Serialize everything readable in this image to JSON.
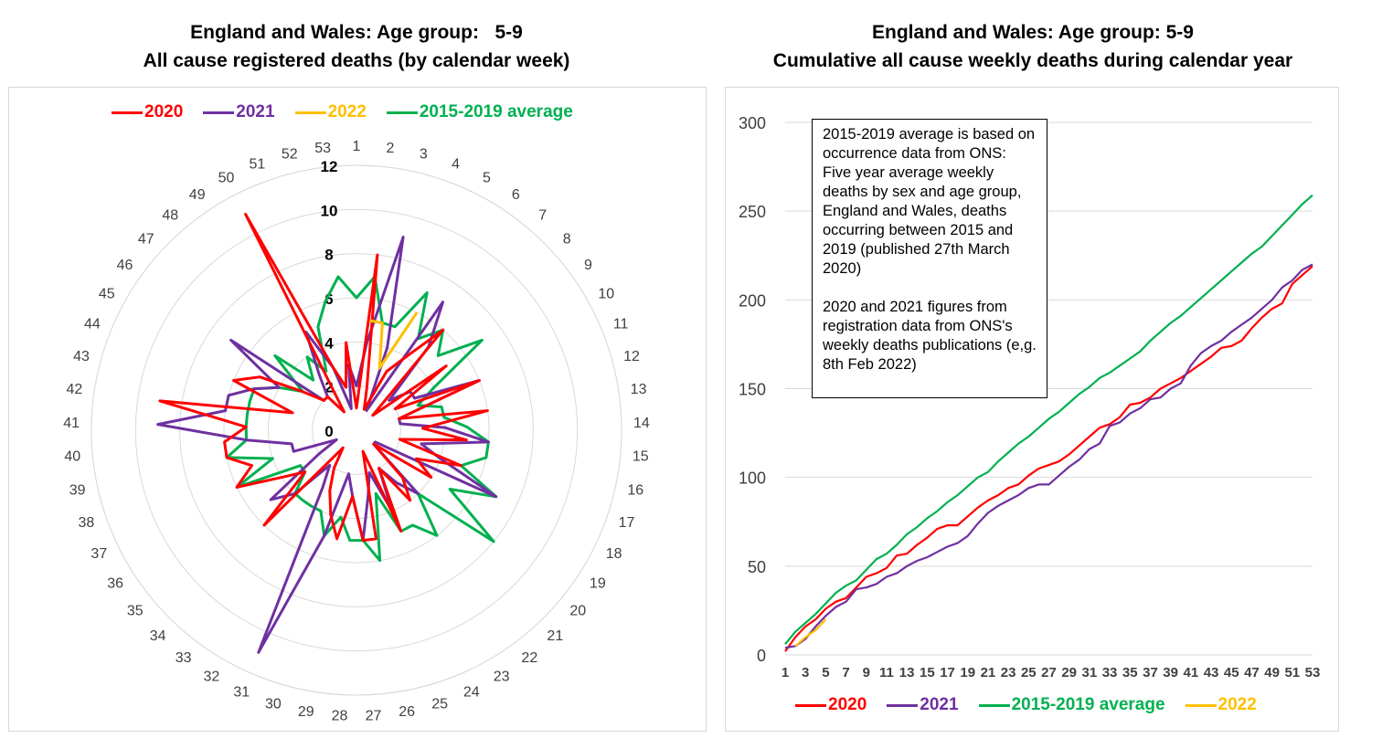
{
  "charts": {
    "radar_title": [
      "England and Wales: Age group:   5-9",
      "All cause registered deaths (by calendar week)"
    ],
    "line_title": [
      "England and Wales: Age group: 5-9",
      "Cumulative all cause weekly deaths during calendar year"
    ],
    "note": [
      "2015-2019 average is based on occurrence data from ONS: Five year average weekly deaths by sex and age group, England and Wales, deaths occurring between 2015 and 2019 (published 27th March 2020)",
      "2020 and 2021 figures from registration data from ONS's weekly deaths publications (e,g. 8th Feb 2022)"
    ]
  },
  "colors": {
    "2020": "#ff0000",
    "2021": "#7030a0",
    "2022": "#ffc000",
    "avg": "#00b050"
  },
  "chart_data": [
    {
      "type": "radar",
      "title": "England and Wales: Age group:   5-9 All cause registered deaths (by calendar week)",
      "categories": [
        1,
        2,
        3,
        4,
        5,
        6,
        7,
        8,
        9,
        10,
        11,
        12,
        13,
        14,
        15,
        16,
        17,
        18,
        19,
        20,
        21,
        22,
        23,
        24,
        25,
        26,
        27,
        28,
        29,
        30,
        31,
        32,
        33,
        34,
        35,
        36,
        37,
        38,
        39,
        40,
        41,
        42,
        43,
        44,
        45,
        46,
        47,
        48,
        49,
        50,
        51,
        52,
        53
      ],
      "r_ticks": [
        0,
        2,
        4,
        6,
        8,
        10,
        12
      ],
      "r_max": 12,
      "legend": "top",
      "series": [
        {
          "name": "2020",
          "key": "2020",
          "values": [
            1,
            8,
            2,
            1,
            3,
            4,
            6,
            1,
            5,
            2,
            6,
            2,
            6,
            3,
            5,
            2,
            5,
            3,
            4,
            1,
            3,
            4,
            2,
            5,
            1,
            5,
            5,
            3,
            5,
            4,
            3,
            2,
            1,
            6,
            3,
            4,
            6,
            5,
            6,
            6,
            5,
            9,
            3,
            6,
            5,
            3,
            2,
            2,
            1,
            11,
            3,
            2,
            4
          ]
        },
        {
          "name": "2021",
          "key": "2021",
          "values": [
            2,
            4,
            9,
            4,
            1,
            7,
            5,
            2,
            3,
            3,
            6,
            2,
            2,
            4,
            6,
            3,
            4,
            7,
            1,
            1,
            4,
            3,
            2,
            4,
            2,
            3,
            5,
            3,
            2,
            5,
            11,
            3,
            2,
            4,
            5,
            2,
            1,
            3,
            3,
            5,
            9,
            6,
            6,
            5,
            4,
            7,
            2,
            2,
            3,
            5,
            3,
            1,
            3
          ]
        },
        {
          "name": "2022",
          "key": "2022",
          "values": [
            null,
            5,
            5,
            3,
            6,
            null,
            null,
            null,
            null,
            null,
            null,
            null,
            null,
            null,
            null,
            null,
            null,
            null,
            null,
            null,
            null,
            null,
            null,
            null,
            null,
            null,
            null,
            null,
            null,
            null,
            null,
            null,
            null,
            null,
            null,
            null,
            null,
            null,
            null,
            null,
            null,
            null,
            null,
            null,
            null,
            null,
            null,
            null,
            null,
            null,
            null,
            null,
            null
          ]
        },
        {
          "name": "2015-2019 average",
          "key": "avg",
          "values": [
            6,
            7,
            5,
            5,
            7,
            5,
            6,
            5,
            7,
            4,
            3,
            4,
            4,
            5,
            6,
            6,
            5,
            7,
            5,
            8,
            4,
            6,
            5,
            5,
            3,
            6,
            5,
            5,
            4,
            5,
            4,
            4,
            4,
            4,
            3,
            3,
            6,
            4,
            6,
            5,
            5,
            5,
            5,
            5,
            4,
            3,
            5,
            3,
            4,
            3,
            5,
            6,
            7
          ]
        }
      ]
    },
    {
      "type": "line",
      "title": "England and Wales: Age group: 5-9 Cumulative all cause weekly deaths during calendar year",
      "x": [
        1,
        2,
        3,
        4,
        5,
        6,
        7,
        8,
        9,
        10,
        11,
        12,
        13,
        14,
        15,
        16,
        17,
        18,
        19,
        20,
        21,
        22,
        23,
        24,
        25,
        26,
        27,
        28,
        29,
        30,
        31,
        32,
        33,
        34,
        35,
        36,
        37,
        38,
        39,
        40,
        41,
        42,
        43,
        44,
        45,
        46,
        47,
        48,
        49,
        50,
        51,
        52,
        53
      ],
      "x_ticks": [
        1,
        3,
        5,
        7,
        9,
        11,
        13,
        15,
        17,
        19,
        21,
        23,
        25,
        27,
        29,
        31,
        33,
        35,
        37,
        39,
        41,
        43,
        45,
        47,
        49,
        51,
        53
      ],
      "ylim": [
        0,
        300
      ],
      "y_ticks": [
        0,
        50,
        100,
        150,
        200,
        250,
        300
      ],
      "legend": "bottom",
      "series": [
        {
          "name": "2020",
          "key": "2020",
          "values": [
            2,
            10,
            16,
            20,
            26,
            30,
            32,
            38,
            44,
            46,
            49,
            56,
            57,
            62,
            66,
            71,
            73,
            73,
            78,
            83,
            87,
            90,
            94,
            96,
            101,
            105,
            107,
            109,
            113,
            118,
            123,
            128,
            130,
            134,
            141,
            142,
            145,
            150,
            153,
            156,
            160,
            164,
            168,
            173,
            174,
            177,
            184,
            190,
            195,
            198,
            209,
            214,
            219
          ]
        },
        {
          "name": "2021",
          "key": "2021",
          "values": [
            4,
            5,
            9,
            16,
            22,
            27,
            30,
            37,
            38,
            40,
            44,
            46,
            50,
            53,
            55,
            58,
            61,
            63,
            67,
            74,
            80,
            84,
            87,
            90,
            94,
            96,
            96,
            101,
            106,
            110,
            116,
            119,
            129,
            131,
            136,
            139,
            144,
            145,
            150,
            153,
            163,
            170,
            174,
            177,
            182,
            186,
            190,
            195,
            200,
            207,
            211,
            217,
            220
          ]
        },
        {
          "name": "2015-2019 average",
          "key": "avg",
          "values": [
            6,
            13,
            18,
            23,
            29,
            35,
            39,
            42,
            48,
            54,
            57,
            62,
            68,
            72,
            77,
            81,
            86,
            90,
            95,
            100,
            103,
            109,
            114,
            119,
            123,
            128,
            133,
            137,
            142,
            147,
            151,
            156,
            159,
            163,
            167,
            171,
            177,
            182,
            187,
            191,
            196,
            201,
            206,
            211,
            216,
            221,
            226,
            230,
            236,
            242,
            248,
            254,
            259
          ]
        },
        {
          "name": "2022",
          "key": "2022",
          "values": [
            null,
            5,
            10,
            14,
            20,
            null,
            null,
            null,
            null,
            null,
            null,
            null,
            null,
            null,
            null,
            null,
            null,
            null,
            null,
            null,
            null,
            null,
            null,
            null,
            null,
            null,
            null,
            null,
            null,
            null,
            null,
            null,
            null,
            null,
            null,
            null,
            null,
            null,
            null,
            null,
            null,
            null,
            null,
            null,
            null,
            null,
            null,
            null,
            null,
            null,
            null,
            null,
            null
          ]
        }
      ]
    }
  ]
}
